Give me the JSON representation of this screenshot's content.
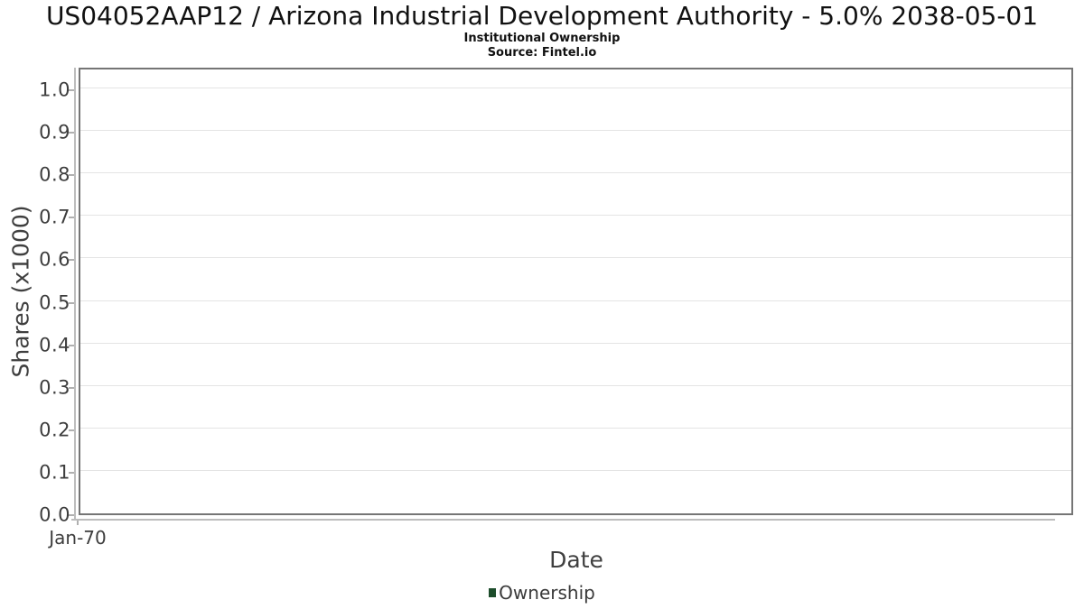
{
  "header": {
    "title": "US04052AAP12 / Arizona Industrial Development Authority - 5.0% 2038-05-01",
    "subtitle": "Institutional Ownership",
    "source": "Source: Fintel.io"
  },
  "chart_data": {
    "type": "line",
    "title": "US04052AAP12 / Arizona Industrial Development Authority - 5.0% 2038-05-01",
    "subtitle": "Institutional Ownership",
    "source_note": "Source: Fintel.io",
    "xlabel": "Date",
    "ylabel": "Shares (x1000)",
    "ylim": [
      0.0,
      1.0
    ],
    "y_tick_step": 0.1,
    "y_ticks": [
      "0.0",
      "0.1",
      "0.2",
      "0.3",
      "0.4",
      "0.5",
      "0.6",
      "0.7",
      "0.8",
      "0.9",
      "1.0"
    ],
    "x_ticks": [
      "Jan-70"
    ],
    "x": [],
    "series": [
      {
        "name": "Ownership",
        "color": "#1d4d2b",
        "values": []
      }
    ],
    "grid": "horizontal-only",
    "legend_position": "bottom-center",
    "plot_is_empty": true
  },
  "legend": {
    "items": [
      {
        "label": "Ownership",
        "color": "#1d4d2b"
      }
    ]
  },
  "colors": {
    "series_green": "#1d4d2b",
    "frame_border": "#757575",
    "axis_line": "#bdbdbd",
    "gridline": "#e4e4e4",
    "tick_text": "#3d3d3d",
    "title_text": "#111111",
    "background": "#ffffff"
  }
}
